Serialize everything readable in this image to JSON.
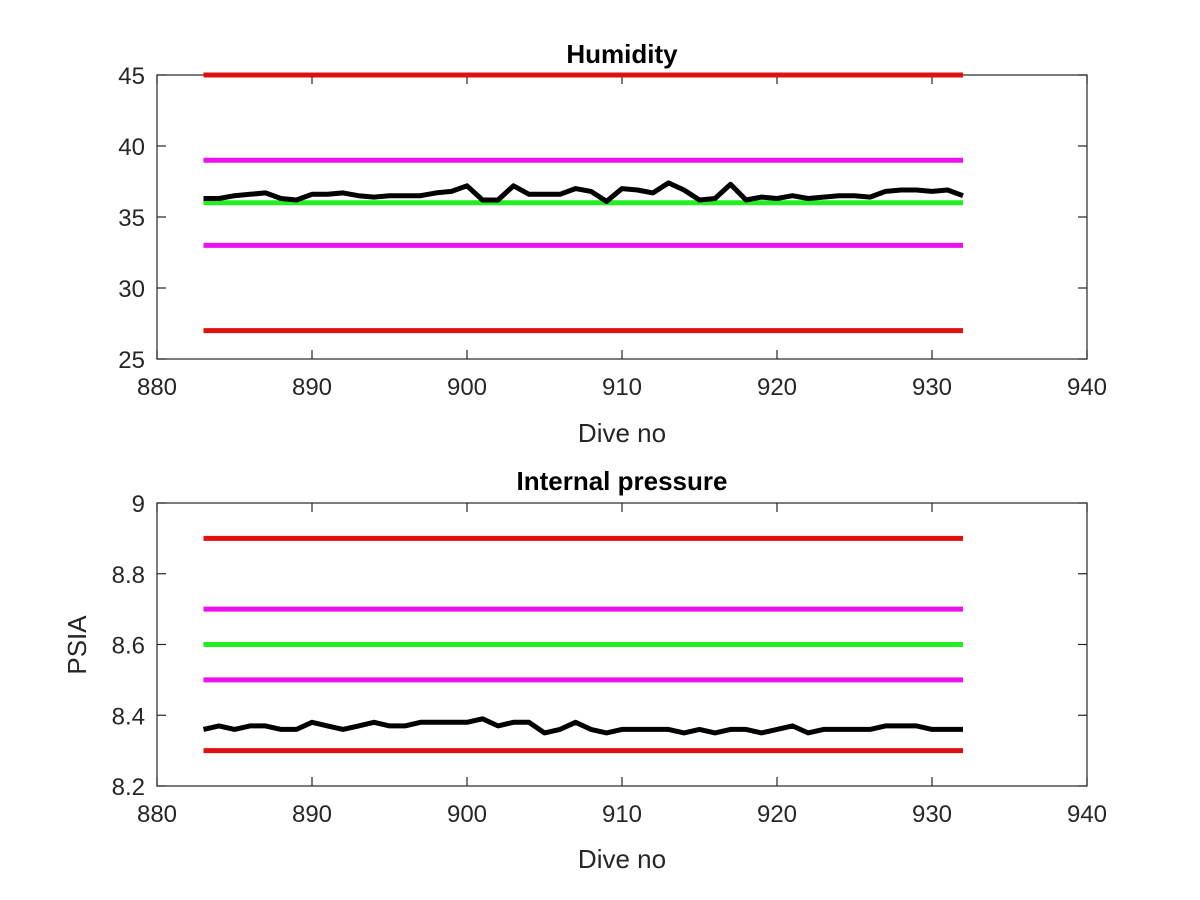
{
  "colors": {
    "red_limit": "#e01010",
    "magenta_limit": "#ee10ee",
    "green_target": "#22ee22",
    "data_line": "#000000",
    "axis": "#262626"
  },
  "chart_data": [
    {
      "type": "line",
      "title": "Humidity",
      "xlabel": "Dive no",
      "ylabel": "",
      "xlim": [
        880,
        940
      ],
      "ylim": [
        25,
        45
      ],
      "xticks": [
        880,
        890,
        900,
        910,
        920,
        930,
        940
      ],
      "yticks": [
        25,
        30,
        35,
        40,
        45
      ],
      "xtick_labels": [
        "880",
        "890",
        "900",
        "910",
        "920",
        "930",
        "940"
      ],
      "ytick_labels": [
        "25",
        "30",
        "35",
        "40",
        "45"
      ],
      "grid": false,
      "series": [
        {
          "role": "upper-red-limit",
          "color": "#e01010",
          "x": [
            883,
            932
          ],
          "values": [
            45,
            45
          ]
        },
        {
          "role": "upper-magenta-limit",
          "color": "#ee10ee",
          "x": [
            883,
            932
          ],
          "values": [
            39,
            39
          ]
        },
        {
          "role": "green-target",
          "color": "#22ee22",
          "x": [
            883,
            932
          ],
          "values": [
            36,
            36
          ]
        },
        {
          "role": "lower-magenta-limit",
          "color": "#ee10ee",
          "x": [
            883,
            932
          ],
          "values": [
            33,
            33
          ]
        },
        {
          "role": "lower-red-limit",
          "color": "#e01010",
          "x": [
            883,
            932
          ],
          "values": [
            27,
            27
          ]
        },
        {
          "role": "measured",
          "color": "#000000",
          "x": [
            883,
            884,
            885,
            886,
            887,
            888,
            889,
            890,
            891,
            892,
            893,
            894,
            895,
            896,
            897,
            898,
            899,
            900,
            901,
            902,
            903,
            904,
            905,
            906,
            907,
            908,
            909,
            910,
            911,
            912,
            913,
            914,
            915,
            916,
            917,
            918,
            919,
            920,
            921,
            922,
            923,
            924,
            925,
            926,
            927,
            928,
            929,
            930,
            931,
            932
          ],
          "values": [
            36.3,
            36.3,
            36.5,
            36.6,
            36.7,
            36.3,
            36.2,
            36.6,
            36.6,
            36.7,
            36.5,
            36.4,
            36.5,
            36.5,
            36.5,
            36.7,
            36.8,
            37.2,
            36.2,
            36.2,
            37.2,
            36.6,
            36.6,
            36.6,
            37.0,
            36.8,
            36.1,
            37.0,
            36.9,
            36.7,
            37.4,
            36.9,
            36.2,
            36.3,
            37.3,
            36.2,
            36.4,
            36.3,
            36.5,
            36.3,
            36.4,
            36.5,
            36.5,
            36.4,
            36.8,
            36.9,
            36.9,
            36.8,
            36.9,
            36.5
          ]
        }
      ]
    },
    {
      "type": "line",
      "title": "Internal pressure",
      "xlabel": "Dive no",
      "ylabel": "PSIA",
      "xlim": [
        880,
        940
      ],
      "ylim": [
        8.2,
        9.0
      ],
      "xticks": [
        880,
        890,
        900,
        910,
        920,
        930,
        940
      ],
      "yticks": [
        8.2,
        8.4,
        8.6,
        8.8,
        9.0
      ],
      "xtick_labels": [
        "880",
        "890",
        "900",
        "910",
        "920",
        "930",
        "940"
      ],
      "ytick_labels": [
        "8.2",
        "8.4",
        "8.6",
        "8.8",
        "9"
      ],
      "grid": false,
      "series": [
        {
          "role": "upper-red-limit",
          "color": "#e01010",
          "x": [
            883,
            932
          ],
          "values": [
            8.9,
            8.9
          ]
        },
        {
          "role": "upper-magenta-limit",
          "color": "#ee10ee",
          "x": [
            883,
            932
          ],
          "values": [
            8.7,
            8.7
          ]
        },
        {
          "role": "green-target",
          "color": "#22ee22",
          "x": [
            883,
            932
          ],
          "values": [
            8.6,
            8.6
          ]
        },
        {
          "role": "lower-magenta-limit",
          "color": "#ee10ee",
          "x": [
            883,
            932
          ],
          "values": [
            8.5,
            8.5
          ]
        },
        {
          "role": "lower-red-limit",
          "color": "#e01010",
          "x": [
            883,
            932
          ],
          "values": [
            8.3,
            8.3
          ]
        },
        {
          "role": "measured",
          "color": "#000000",
          "x": [
            883,
            884,
            885,
            886,
            887,
            888,
            889,
            890,
            891,
            892,
            893,
            894,
            895,
            896,
            897,
            898,
            899,
            900,
            901,
            902,
            903,
            904,
            905,
            906,
            907,
            908,
            909,
            910,
            911,
            912,
            913,
            914,
            915,
            916,
            917,
            918,
            919,
            920,
            921,
            922,
            923,
            924,
            925,
            926,
            927,
            928,
            929,
            930,
            931,
            932
          ],
          "values": [
            8.36,
            8.37,
            8.36,
            8.37,
            8.37,
            8.36,
            8.36,
            8.38,
            8.37,
            8.36,
            8.37,
            8.38,
            8.37,
            8.37,
            8.38,
            8.38,
            8.38,
            8.38,
            8.39,
            8.37,
            8.38,
            8.38,
            8.35,
            8.36,
            8.38,
            8.36,
            8.35,
            8.36,
            8.36,
            8.36,
            8.36,
            8.35,
            8.36,
            8.35,
            8.36,
            8.36,
            8.35,
            8.36,
            8.37,
            8.35,
            8.36,
            8.36,
            8.36,
            8.36,
            8.37,
            8.37,
            8.37,
            8.36,
            8.36,
            8.36
          ]
        }
      ]
    }
  ]
}
